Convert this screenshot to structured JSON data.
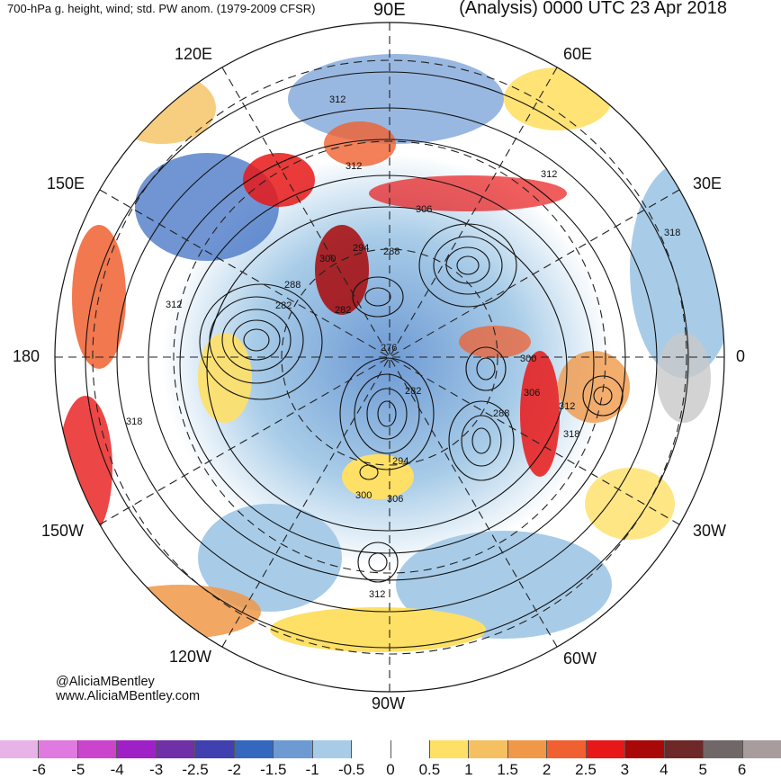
{
  "header": {
    "title_left": "700-hPa g. height, wind; std. PW anom. (1979-2009 CFSR)",
    "title_right": "(Analysis) 0000 UTC 23 Apr 2018"
  },
  "longitude_labels": {
    "e90": "90E",
    "e60": "60E",
    "e30": "30E",
    "zero": "0",
    "w30": "30W",
    "w60": "60W",
    "w90": "90W",
    "w120": "120W",
    "w150": "150W",
    "d180": "180",
    "e150": "150E",
    "e120": "120E"
  },
  "contour_labels": [
    "312",
    "312",
    "312",
    "306",
    "318",
    "300",
    "294",
    "288",
    "288",
    "282",
    "282",
    "276",
    "312",
    "300",
    "306",
    "312",
    "318",
    "282",
    "288",
    "294",
    "300",
    "306",
    "312",
    "318"
  ],
  "credits": {
    "handle": "@AliciaMBentley",
    "website": "www.AliciaMBentley.com"
  },
  "colorbar": {
    "colors": [
      "#e8b4e8",
      "#e07ae0",
      "#cc44cc",
      "#a020c8",
      "#7030a8",
      "#4040b0",
      "#3468c0",
      "#6e9ad4",
      "#a8cce8",
      "#ffffff",
      "#ffffff",
      "#ffe066",
      "#f5c060",
      "#f09848",
      "#f06030",
      "#e81818",
      "#a80808",
      "#6e2828",
      "#706868",
      "#a89c9c"
    ],
    "tick_labels": [
      "-6",
      "-5",
      "-4",
      "-3",
      "-2.5",
      "-2",
      "-1.5",
      "-1",
      "-0.5",
      "0",
      "0.5",
      "1",
      "1.5",
      "2",
      "2.5",
      "3",
      "4",
      "5",
      "6"
    ]
  }
}
